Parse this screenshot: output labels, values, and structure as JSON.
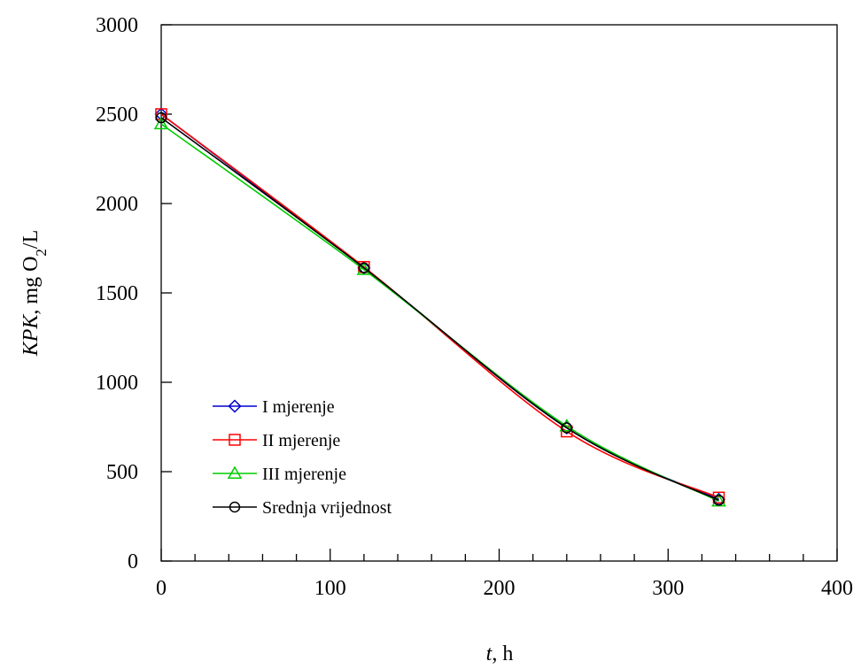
{
  "chart_data": {
    "type": "line",
    "xlabel_var": "t",
    "xlabel_unit": ", h",
    "ylabel_var": "KPK",
    "ylabel_mid": ", mg O",
    "ylabel_sub": "2",
    "ylabel_unit": "/L",
    "xlim": [
      0,
      400
    ],
    "ylim": [
      0,
      3000
    ],
    "xticks": [
      0,
      100,
      200,
      300,
      400
    ],
    "yticks": [
      0,
      500,
      1000,
      1500,
      2000,
      2500,
      3000
    ],
    "legend_position": "lower-left",
    "grid": false,
    "series": [
      {
        "name": "I mjerenje",
        "color": "#0000cc",
        "marker": "diamond",
        "x": [
          0,
          120,
          240,
          330
        ],
        "y": [
          2500,
          1640,
          745,
          345
        ]
      },
      {
        "name": "II mjerenje",
        "color": "#ff0000",
        "marker": "square",
        "x": [
          0,
          120,
          240,
          330
        ],
        "y": [
          2500,
          1645,
          725,
          355
        ]
      },
      {
        "name": "III mjerenje",
        "color": "#00cc00",
        "marker": "triangle",
        "x": [
          0,
          120,
          240,
          330
        ],
        "y": [
          2445,
          1630,
          755,
          335
        ]
      },
      {
        "name": "Srednja vrijednost",
        "color": "#000000",
        "marker": "circle",
        "x": [
          0,
          120,
          240,
          330
        ],
        "y": [
          2480,
          1640,
          745,
          340
        ]
      }
    ]
  }
}
